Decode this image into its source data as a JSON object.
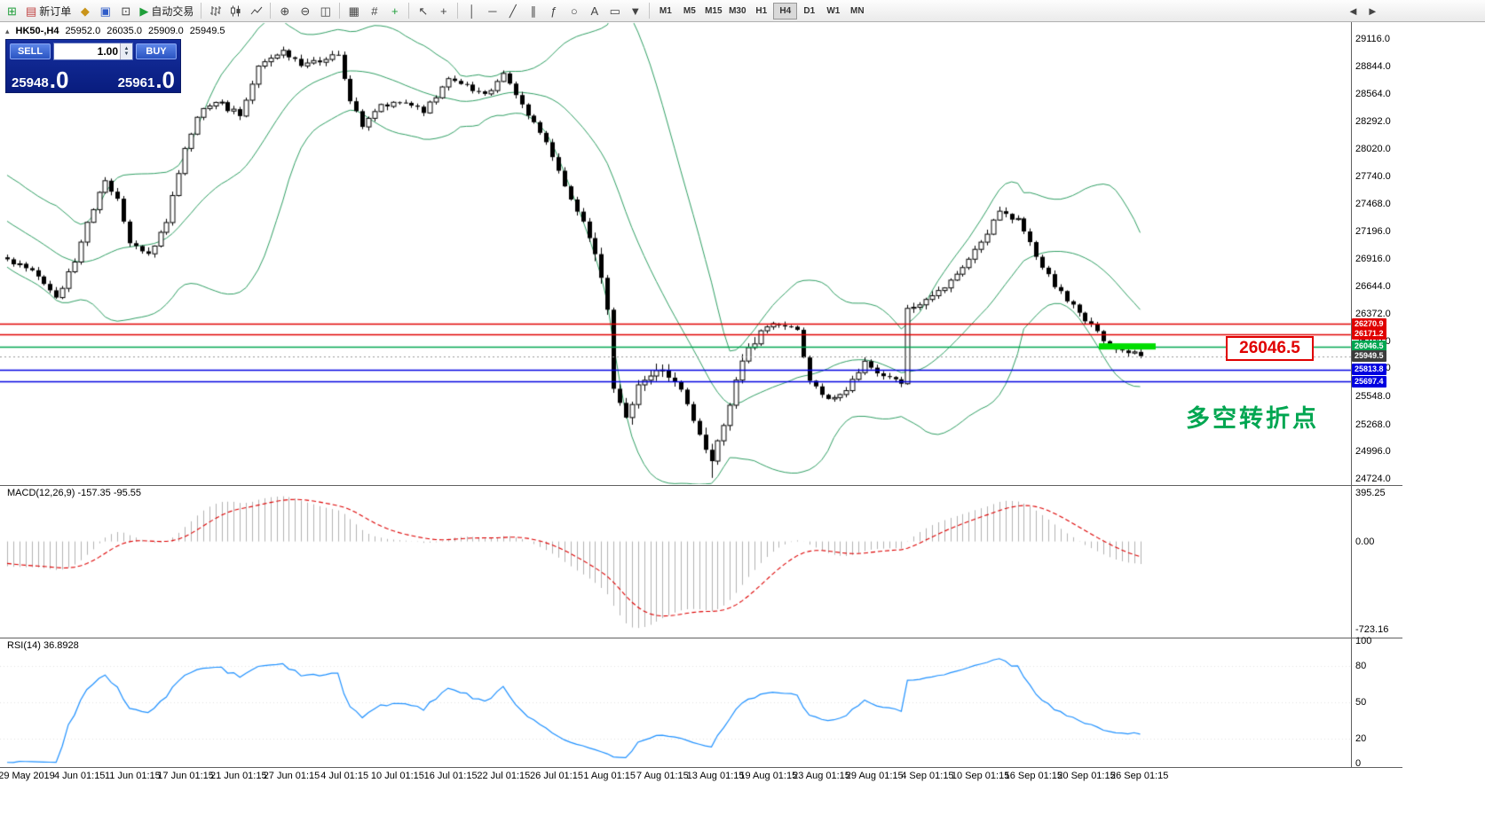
{
  "toolbar": {
    "new_order": "新订单",
    "autotrading": "自动交易",
    "timeframes": [
      "M1",
      "M5",
      "M15",
      "M30",
      "H1",
      "H4",
      "D1",
      "W1",
      "MN"
    ],
    "active_timeframe": "H4",
    "icon_glyphs": {
      "new_chart": "⊞",
      "new_order": "▤",
      "metaeditor": "◆",
      "terminal": "▣",
      "strategy_tester": "⊡",
      "autotrading": "▶",
      "zoom_in": "⊕",
      "zoom_out": "⊖",
      "tile_windows": "◫",
      "auto_arrange": "▦",
      "grid": "#",
      "indicators": "+",
      "cursor": "↖",
      "crosshair": "+",
      "vertical_line": "│",
      "horizontal_line": "─",
      "trendline": "╱",
      "channel": "∥",
      "fibonacci": "ƒ",
      "shapes": "○",
      "text": "A",
      "label": "▭",
      "arrows": "▼",
      "scroll_left": "◄",
      "scroll_right": "►"
    }
  },
  "chart_header": {
    "collapse_glyph": "▴",
    "symbol": "HK50-,H4",
    "open": "25952.0",
    "high": "26035.0",
    "low": "25909.0",
    "close": "25949.5"
  },
  "trade_panel": {
    "sell_label": "SELL",
    "buy_label": "BUY",
    "volume": "1.00",
    "sell_price": "25948",
    "sell_pips": ".0",
    "buy_price": "25961",
    "buy_pips": ".0"
  },
  "annotations": {
    "price_callout": "26046.5",
    "note_cn": "多空转折点"
  },
  "price_axis": [
    "29116.0",
    "28844.0",
    "28564.0",
    "28292.0",
    "28020.0",
    "27740.0",
    "27468.0",
    "27196.0",
    "26916.0",
    "26644.0",
    "26372.0",
    "26100.0",
    "25828.0",
    "25548.0",
    "25268.0",
    "24996.0",
    "24724.0"
  ],
  "time_axis": [
    "29 May 2019",
    "4 Jun 01:15",
    "11 Jun 01:15",
    "17 Jun 01:15",
    "21 Jun 01:15",
    "27 Jun 01:15",
    "4 Jul 01:15",
    "10 Jul 01:15",
    "16 Jul 01:15",
    "22 Jul 01:15",
    "26 Jul 01:15",
    "1 Aug 01:15",
    "7 Aug 01:15",
    "13 Aug 01:15",
    "19 Aug 01:15",
    "23 Aug 01:15",
    "29 Aug 01:15",
    "4 Sep 01:15",
    "10 Sep 01:15",
    "16 Sep 01:15",
    "20 Sep 01:15",
    "26 Sep 01:15"
  ],
  "hlines": [
    {
      "price": 26270.9,
      "label": "26270.9",
      "color": "#e00000",
      "style": "solid"
    },
    {
      "price": 26171.2,
      "label": "26171.2",
      "color": "#e00000",
      "style": "solid"
    },
    {
      "price": 26046.5,
      "label": "26046.5",
      "color": "#00a651",
      "style": "solid"
    },
    {
      "price": 25949.5,
      "label": "25949.5",
      "color": "#3c3c3c",
      "style": "dotted"
    },
    {
      "price": 25813.8,
      "label": "25813.8",
      "color": "#0000e0",
      "style": "solid"
    },
    {
      "price": 25697.4,
      "label": "25697.4",
      "color": "#0000e0",
      "style": "solid"
    }
  ],
  "macd_panel": {
    "label": "MACD(12,26,9) -157.35 -95.55",
    "scale_top": "395.25",
    "scale_zero": "0.00",
    "scale_bottom": "-723.16"
  },
  "rsi_panel": {
    "label": "RSI(14) 36.8928",
    "scale": [
      "100",
      "80",
      "50",
      "20",
      "0"
    ]
  },
  "chart_data": {
    "type": "candlestick",
    "symbol": "HK50-",
    "timeframe": "H4",
    "visible_price_range": {
      "min": 24724.0,
      "max": 29116.0
    },
    "candle_count": 186,
    "close_path_anchors": [
      [
        0,
        26900
      ],
      [
        4,
        26800
      ],
      [
        8,
        26520
      ],
      [
        11,
        26900
      ],
      [
        13,
        27300
      ],
      [
        16,
        27700
      ],
      [
        18,
        27500
      ],
      [
        20,
        27100
      ],
      [
        23,
        26950
      ],
      [
        26,
        27300
      ],
      [
        29,
        28000
      ],
      [
        31,
        28350
      ],
      [
        34,
        28500
      ],
      [
        38,
        28350
      ],
      [
        41,
        28850
      ],
      [
        43,
        28950
      ],
      [
        45,
        28980
      ],
      [
        48,
        28850
      ],
      [
        51,
        28900
      ],
      [
        54,
        28950
      ],
      [
        56,
        28500
      ],
      [
        58,
        28250
      ],
      [
        61,
        28450
      ],
      [
        65,
        28480
      ],
      [
        68,
        28400
      ],
      [
        72,
        28700
      ],
      [
        75,
        28650
      ],
      [
        78,
        28550
      ],
      [
        81,
        28750
      ],
      [
        84,
        28450
      ],
      [
        87,
        28200
      ],
      [
        90,
        27800
      ],
      [
        93,
        27400
      ],
      [
        95,
        27150
      ],
      [
        97,
        26700
      ],
      [
        98,
        26430
      ],
      [
        99,
        25640
      ],
      [
        100,
        25500
      ],
      [
        101,
        25350
      ],
      [
        104,
        25750
      ],
      [
        107,
        25850
      ],
      [
        110,
        25600
      ],
      [
        113,
        25150
      ],
      [
        115,
        24900
      ],
      [
        117,
        25300
      ],
      [
        120,
        25900
      ],
      [
        123,
        26200
      ],
      [
        126,
        26280
      ],
      [
        129,
        26200
      ],
      [
        131,
        25700
      ],
      [
        134,
        25500
      ],
      [
        137,
        25600
      ],
      [
        140,
        25900
      ],
      [
        143,
        25750
      ],
      [
        146,
        25680
      ],
      [
        147,
        26420
      ],
      [
        150,
        26500
      ],
      [
        153,
        26650
      ],
      [
        156,
        26850
      ],
      [
        159,
        27100
      ],
      [
        162,
        27380
      ],
      [
        165,
        27300
      ],
      [
        168,
        26950
      ],
      [
        171,
        26650
      ],
      [
        174,
        26450
      ],
      [
        177,
        26250
      ],
      [
        180,
        26050
      ],
      [
        183,
        25990
      ],
      [
        185,
        25949.5
      ]
    ],
    "special": {
      "spike_low_index": 115,
      "spike_low_price": 24734,
      "peak_high_index": 45,
      "peak_high_price": 29040
    },
    "overlays": [
      "Bollinger Bands 20,2 (green)",
      "horizontal lines: 26270.9 red, 26171.2 red, 26046.5 green, 25813.8 blue, 25697.4 blue",
      "thick green highlight segment at 26046.5 near last candles"
    ],
    "indicators": [
      {
        "name": "MACD",
        "params": "12,26,9",
        "display_values": "-157.35 -95.55"
      },
      {
        "name": "RSI",
        "params": "14",
        "display_value": "36.8928"
      }
    ]
  }
}
